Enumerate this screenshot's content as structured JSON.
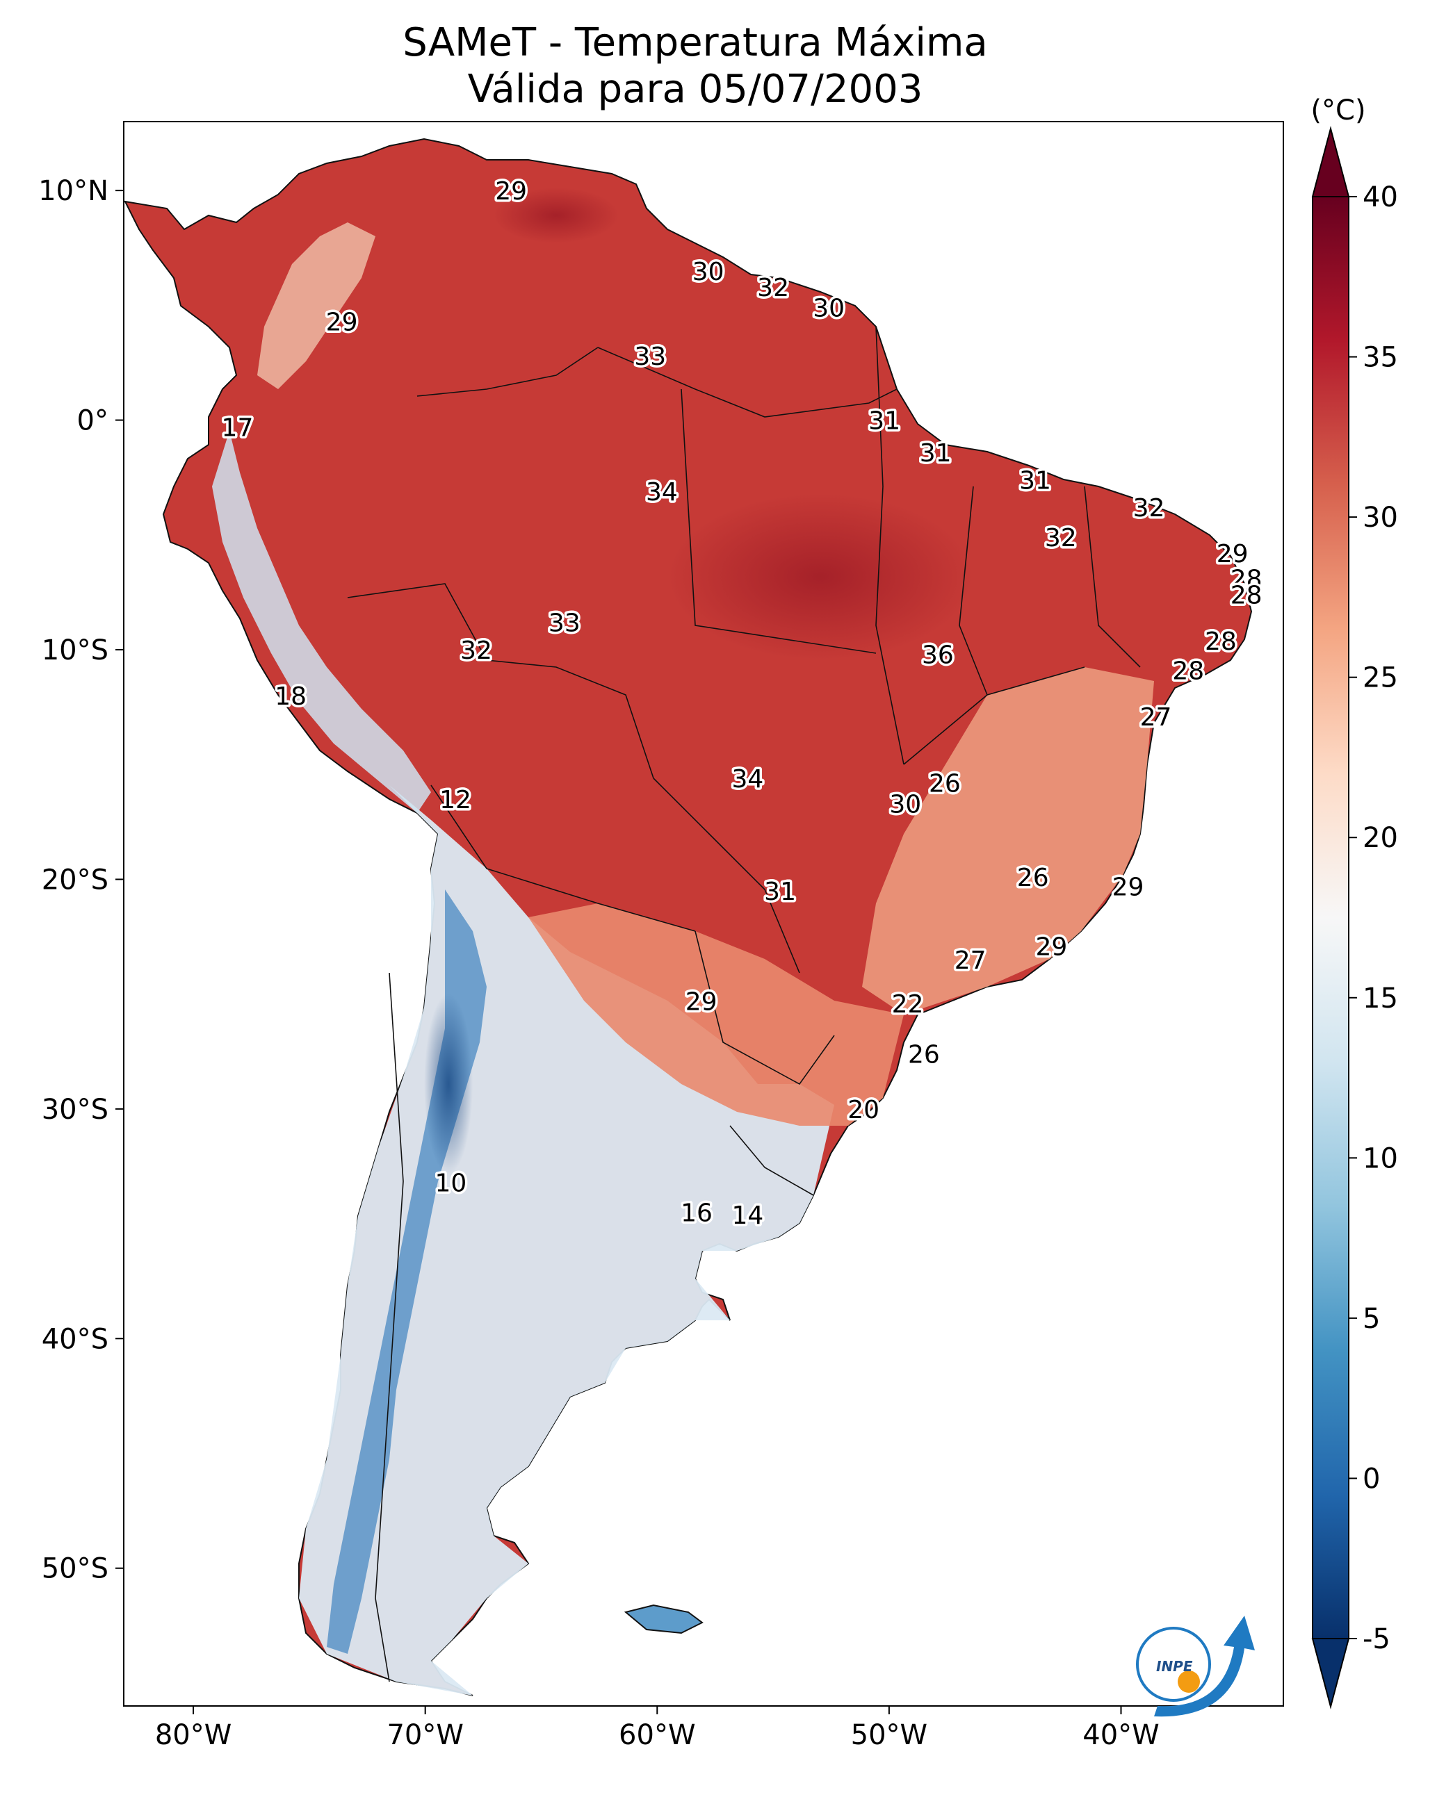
{
  "title": {
    "line1": "SAMeT - Temperatura Máxima",
    "line2": "Válida para 05/07/2003"
  },
  "colorbar": {
    "unit_label": "(°C)",
    "min": -5,
    "max": 40,
    "ticks": [
      -5,
      0,
      5,
      10,
      15,
      20,
      25,
      30,
      35,
      40
    ],
    "colors": [
      "#08306b",
      "#2166ac",
      "#4393c3",
      "#92c5de",
      "#d1e5f0",
      "#f7f7f7",
      "#fddbc7",
      "#f4a582",
      "#d6604d",
      "#b2182b",
      "#67001f"
    ]
  },
  "axes": {
    "lon_range": [
      -83,
      -33
    ],
    "lat_range": [
      -56,
      13
    ],
    "x_ticks": [
      {
        "value": -80,
        "label": "80°W"
      },
      {
        "value": -70,
        "label": "70°W"
      },
      {
        "value": -60,
        "label": "60°W"
      },
      {
        "value": -50,
        "label": "50°W"
      },
      {
        "value": -40,
        "label": "40°W"
      }
    ],
    "y_ticks": [
      {
        "value": 10,
        "label": "10°N"
      },
      {
        "value": 0,
        "label": "0°"
      },
      {
        "value": -10,
        "label": "10°S"
      },
      {
        "value": -20,
        "label": "20°S"
      },
      {
        "value": -30,
        "label": "30°S"
      },
      {
        "value": -40,
        "label": "40°S"
      },
      {
        "value": -50,
        "label": "50°S"
      }
    ]
  },
  "station_labels": [
    {
      "lon": -66.3,
      "lat": 10.0,
      "text": "29"
    },
    {
      "lon": -73.6,
      "lat": 4.3,
      "text": "29"
    },
    {
      "lon": -57.8,
      "lat": 6.5,
      "text": "30"
    },
    {
      "lon": -55.0,
      "lat": 5.8,
      "text": "32"
    },
    {
      "lon": -52.6,
      "lat": 4.9,
      "text": "30"
    },
    {
      "lon": -60.3,
      "lat": 2.8,
      "text": "33"
    },
    {
      "lon": -78.1,
      "lat": -0.3,
      "text": "17"
    },
    {
      "lon": -50.2,
      "lat": 0.0,
      "text": "31"
    },
    {
      "lon": -48.0,
      "lat": -1.4,
      "text": "31"
    },
    {
      "lon": -43.7,
      "lat": -2.6,
      "text": "31"
    },
    {
      "lon": -59.8,
      "lat": -3.1,
      "text": "34"
    },
    {
      "lon": -38.8,
      "lat": -3.8,
      "text": "32"
    },
    {
      "lon": -42.6,
      "lat": -5.1,
      "text": "32"
    },
    {
      "lon": -35.2,
      "lat": -5.8,
      "text": "29"
    },
    {
      "lon": -34.6,
      "lat": -6.9,
      "text": "28"
    },
    {
      "lon": -34.6,
      "lat": -7.6,
      "text": "28"
    },
    {
      "lon": -64.0,
      "lat": -8.8,
      "text": "33"
    },
    {
      "lon": -35.7,
      "lat": -9.6,
      "text": "28"
    },
    {
      "lon": -67.8,
      "lat": -10.0,
      "text": "32"
    },
    {
      "lon": -47.9,
      "lat": -10.2,
      "text": "36"
    },
    {
      "lon": -37.1,
      "lat": -10.9,
      "text": "28"
    },
    {
      "lon": -75.8,
      "lat": -12.0,
      "text": "18"
    },
    {
      "lon": -38.5,
      "lat": -12.9,
      "text": "27"
    },
    {
      "lon": -56.1,
      "lat": -15.6,
      "text": "34"
    },
    {
      "lon": -47.6,
      "lat": -15.8,
      "text": "26"
    },
    {
      "lon": -49.3,
      "lat": -16.7,
      "text": "30"
    },
    {
      "lon": -68.7,
      "lat": -16.5,
      "text": "12"
    },
    {
      "lon": -43.8,
      "lat": -19.9,
      "text": "26"
    },
    {
      "lon": -39.7,
      "lat": -20.3,
      "text": "29"
    },
    {
      "lon": -54.7,
      "lat": -20.5,
      "text": "31"
    },
    {
      "lon": -43.0,
      "lat": -22.9,
      "text": "29"
    },
    {
      "lon": -46.5,
      "lat": -23.5,
      "text": "27"
    },
    {
      "lon": -58.1,
      "lat": -25.3,
      "text": "29"
    },
    {
      "lon": -49.2,
      "lat": -25.4,
      "text": "22"
    },
    {
      "lon": -48.5,
      "lat": -27.6,
      "text": "26"
    },
    {
      "lon": -51.1,
      "lat": -30.0,
      "text": "20"
    },
    {
      "lon": -68.9,
      "lat": -33.2,
      "text": "10"
    },
    {
      "lon": -58.3,
      "lat": -34.5,
      "text": "16"
    },
    {
      "lon": -56.1,
      "lat": -34.6,
      "text": "14"
    }
  ],
  "logo": {
    "text": "INPE"
  }
}
